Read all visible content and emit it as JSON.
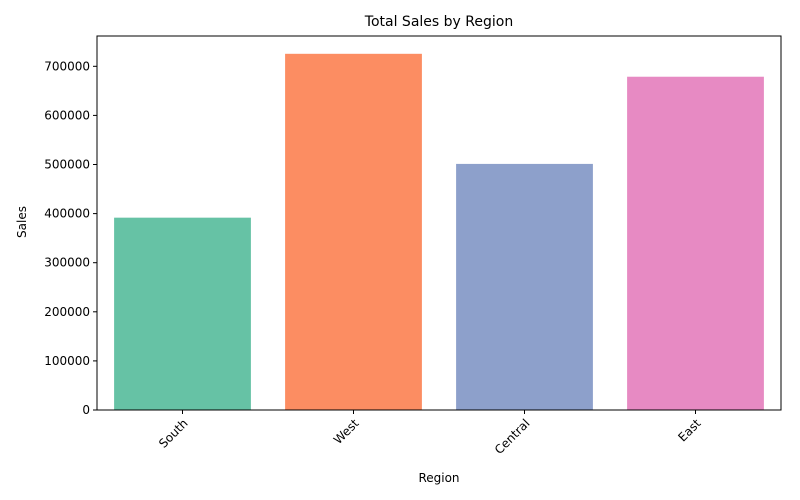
{
  "chart_data": {
    "type": "bar",
    "title": "Total Sales by Region",
    "xlabel": "Region",
    "ylabel": "Sales",
    "categories": [
      "South",
      "West",
      "Central",
      "East"
    ],
    "values": [
      391722,
      725458,
      501240,
      678781
    ],
    "colors": [
      "#66c2a5",
      "#fc8d62",
      "#8da0cb",
      "#e78ac3"
    ],
    "ylim": [
      0,
      761731
    ],
    "yticks": [
      0,
      100000,
      200000,
      300000,
      400000,
      500000,
      600000,
      700000
    ],
    "ytick_labels": [
      "0",
      "100000",
      "200000",
      "300000",
      "400000",
      "500000",
      "600000",
      "700000"
    ],
    "grid": false,
    "x_tick_rotation": 45
  }
}
